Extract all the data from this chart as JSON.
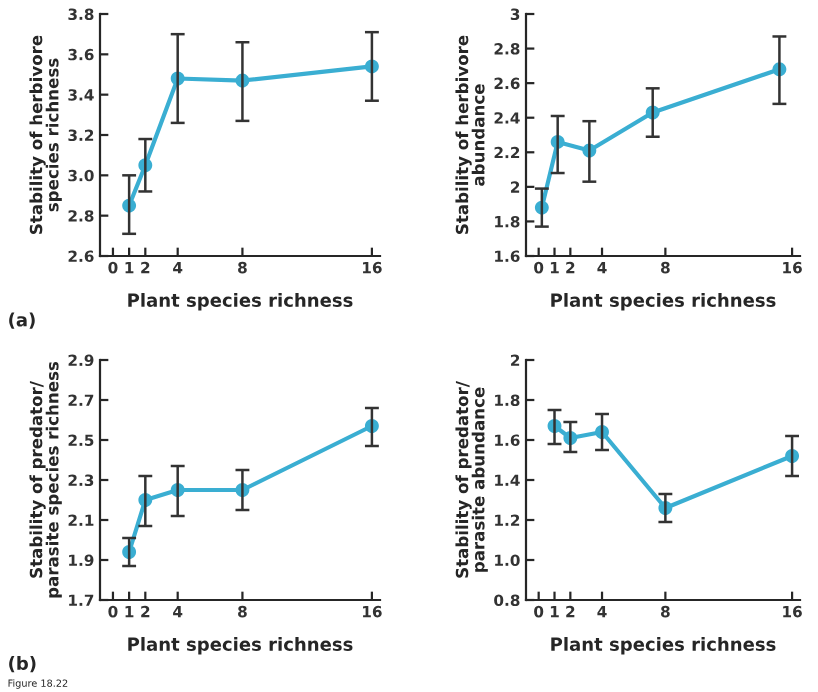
{
  "chart_data": [
    {
      "type": "line",
      "xlabel": "Plant species richness",
      "ylabel": "Stability of herbivore\nspecies richness",
      "annotations": [
        "(a)"
      ],
      "xlim": [
        -0.8,
        16.5
      ],
      "xticks": [
        0,
        1,
        2,
        4,
        8,
        16
      ],
      "ylim": [
        2.6,
        3.8
      ],
      "yticks": [
        {
          "value": 2.6,
          "label": "2.6"
        },
        {
          "value": 2.8,
          "label": "2.8"
        },
        {
          "value": 3.0,
          "label": "3.0"
        },
        {
          "value": 3.2,
          "label": "3.2"
        },
        {
          "value": 3.4,
          "label": "3.4"
        },
        {
          "value": 3.6,
          "label": "3.6"
        },
        {
          "value": 3.8,
          "label": "3.8"
        }
      ],
      "marker": "circle",
      "grid": false,
      "series": [
        {
          "color": "#3aaed2",
          "x": [
            1,
            2,
            4,
            8,
            16
          ],
          "values": [
            2.85,
            3.05,
            3.48,
            3.47,
            3.54
          ],
          "errors": [
            [
              2.71,
              3.0
            ],
            [
              2.92,
              3.18
            ],
            [
              3.26,
              3.7
            ],
            [
              3.27,
              3.66
            ],
            [
              3.37,
              3.71
            ]
          ]
        }
      ]
    },
    {
      "type": "line",
      "xlabel": "Plant species richness",
      "ylabel": "Stability of herbivore\nabundance",
      "xlim": [
        -0.8,
        16.5
      ],
      "xticks": [
        0,
        1,
        2,
        4,
        8,
        16
      ],
      "ylim": [
        1.6,
        3
      ],
      "yticks": [
        1.6,
        1.8,
        2,
        2.2,
        2.4,
        2.6,
        2.8,
        3
      ],
      "marker": "circle",
      "grid": false,
      "series": [
        {
          "color": "#3aaed2",
          "x": [
            0.2,
            1.2,
            3.2,
            7.2,
            15.2
          ],
          "values": [
            1.88,
            2.26,
            2.21,
            2.43,
            2.68
          ],
          "errors": [
            [
              1.77,
              1.99
            ],
            [
              2.08,
              2.41
            ],
            [
              2.03,
              2.38
            ],
            [
              2.29,
              2.57
            ],
            [
              2.48,
              2.87
            ]
          ]
        }
      ]
    },
    {
      "type": "line",
      "xlabel": "Plant species richness",
      "ylabel": "Stability of predator/\nparasite species richness",
      "annotations": [
        "(b)",
        "Figure 18.22"
      ],
      "xlim": [
        -0.8,
        16.5
      ],
      "xticks": [
        0,
        1,
        2,
        4,
        8,
        16
      ],
      "ylim": [
        1.7,
        2.9
      ],
      "yticks": [
        1.7,
        1.9,
        2.1,
        2.3,
        2.5,
        2.7,
        2.9
      ],
      "marker": "circle",
      "grid": false,
      "series": [
        {
          "color": "#3aaed2",
          "x": [
            1,
            2,
            4,
            8,
            16
          ],
          "values": [
            1.94,
            2.2,
            2.25,
            2.25,
            2.57
          ],
          "errors": [
            [
              1.87,
              2.01
            ],
            [
              2.07,
              2.32
            ],
            [
              2.12,
              2.37
            ],
            [
              2.15,
              2.35
            ],
            [
              2.47,
              2.66
            ]
          ]
        }
      ]
    },
    {
      "type": "line",
      "xlabel": "Plant species richness",
      "ylabel": "Stability of predator/\nparasite abundance",
      "xlim": [
        -0.8,
        16.5
      ],
      "xticks": [
        0,
        1,
        2,
        4,
        8,
        16
      ],
      "ylim": [
        0.8,
        2
      ],
      "yticks": [
        {
          "value": 0.8,
          "label": "0.8"
        },
        {
          "value": 1.0,
          "label": "1.0"
        },
        {
          "value": 1.2,
          "label": "1.2"
        },
        1.4,
        1.6,
        1.8,
        2
      ],
      "marker": "circle",
      "grid": false,
      "series": [
        {
          "color": "#3aaed2",
          "x": [
            1,
            2,
            4,
            8,
            16
          ],
          "values": [
            1.67,
            1.61,
            1.64,
            1.26,
            1.52
          ],
          "errors": [
            [
              1.58,
              1.75
            ],
            [
              1.54,
              1.69
            ],
            [
              1.55,
              1.73
            ],
            [
              1.19,
              1.33
            ],
            [
              1.42,
              1.62
            ]
          ]
        }
      ]
    }
  ]
}
